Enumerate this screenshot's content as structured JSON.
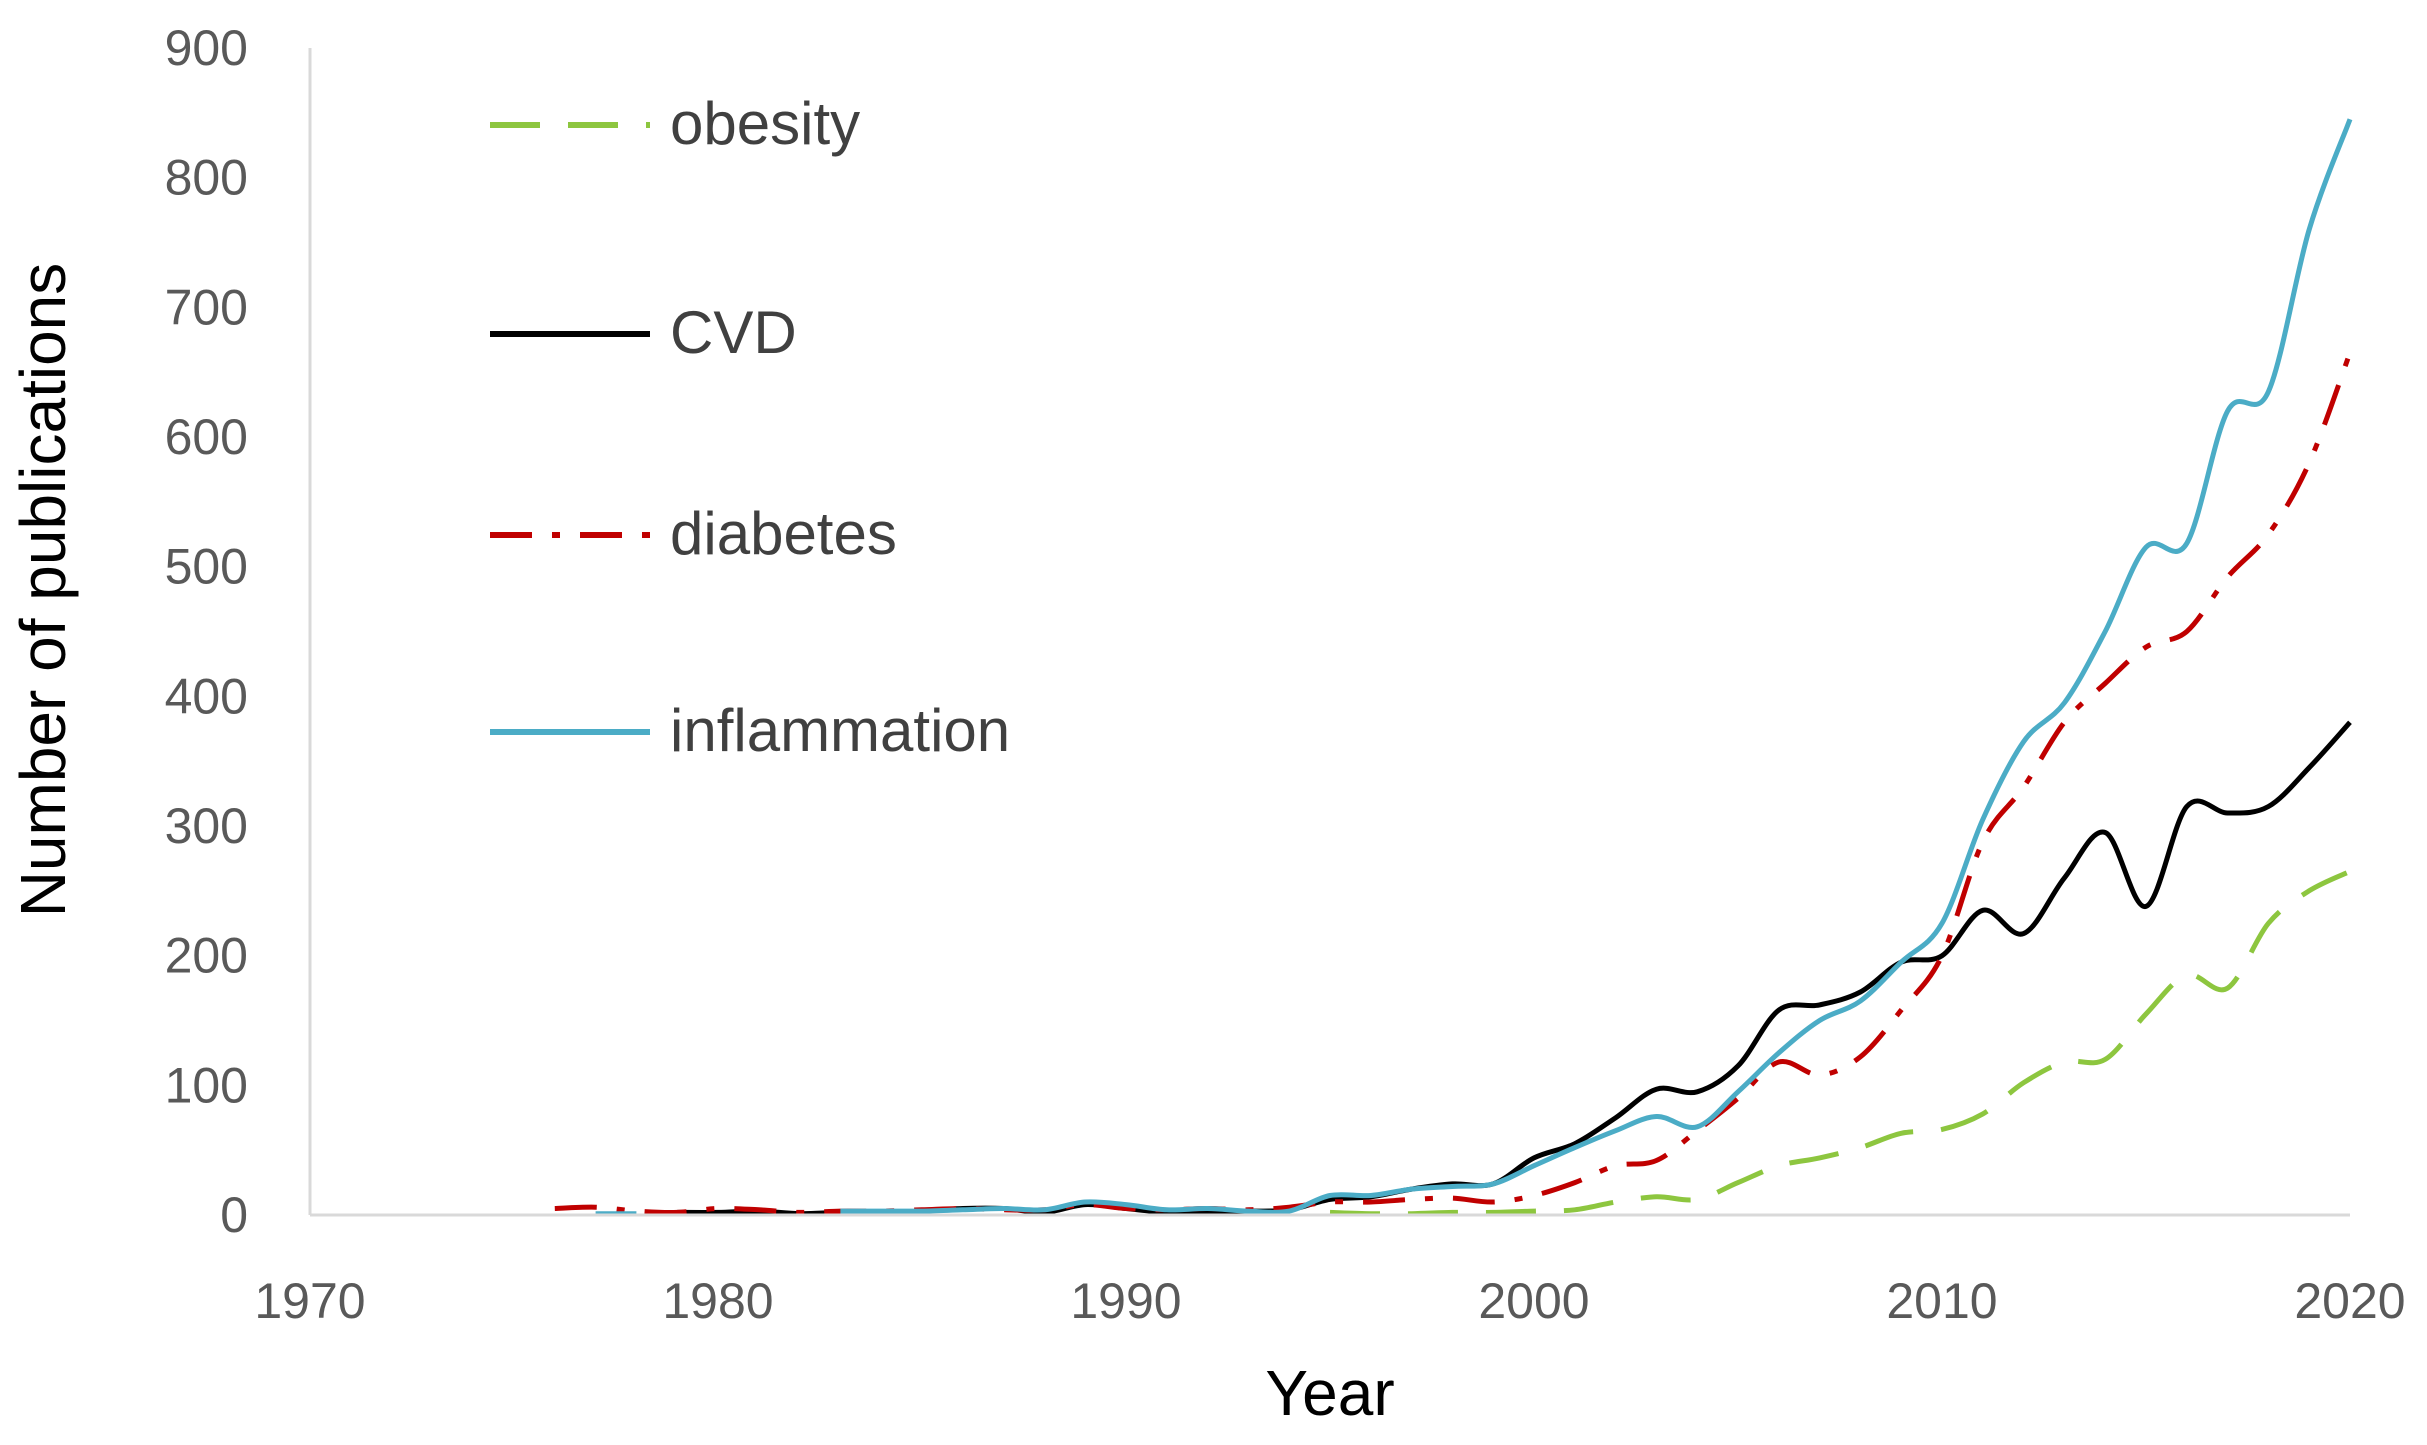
{
  "chart_data": {
    "type": "line",
    "title": "",
    "xlabel": "Year",
    "ylabel": "Number of publications",
    "xlim": [
      1970,
      2020
    ],
    "ylim": [
      0,
      900
    ],
    "x_ticks": [
      1970,
      1980,
      1990,
      2000,
      2010,
      2020
    ],
    "y_ticks": [
      0,
      100,
      200,
      300,
      400,
      500,
      600,
      700,
      800,
      900
    ],
    "grid": false,
    "legend_position": "top-left",
    "series": [
      {
        "name": "obesity",
        "color": "#8DC63F",
        "style": "dashed",
        "x": [
          1995,
          1996,
          1997,
          1998,
          1999,
          2000,
          2001,
          2002,
          2003,
          2004,
          2005,
          2006,
          2007,
          2008,
          2009,
          2010,
          2011,
          2012,
          2013,
          2014,
          2015,
          2016,
          2017,
          2018,
          2019,
          2020
        ],
        "y": [
          2,
          1,
          1,
          2,
          2,
          3,
          4,
          10,
          14,
          12,
          25,
          38,
          44,
          52,
          63,
          66,
          78,
          102,
          118,
          120,
          155,
          185,
          175,
          225,
          250,
          265
        ]
      },
      {
        "name": "CVD",
        "color": "#000000",
        "style": "solid",
        "x": [
          1979,
          1980,
          1981,
          1982,
          1983,
          1984,
          1985,
          1986,
          1987,
          1988,
          1989,
          1990,
          1991,
          1992,
          1993,
          1994,
          1995,
          1996,
          1997,
          1998,
          1999,
          2000,
          2001,
          2002,
          2003,
          2004,
          2005,
          2006,
          2007,
          2008,
          2009,
          2010,
          2011,
          2012,
          2013,
          2014,
          2015,
          2016,
          2017,
          2018,
          2019,
          2020
        ],
        "y": [
          2,
          2,
          3,
          1,
          2,
          2,
          3,
          5,
          5,
          2,
          8,
          5,
          2,
          3,
          3,
          4,
          12,
          14,
          20,
          24,
          24,
          44,
          55,
          75,
          97,
          95,
          115,
          158,
          162,
          172,
          195,
          200,
          235,
          217,
          260,
          295,
          238,
          315,
          310,
          315,
          345,
          380
        ]
      },
      {
        "name": "diabetes",
        "color": "#C00000",
        "style": "dash-dot",
        "x": [
          1976,
          1977,
          1978,
          1979,
          1980,
          1981,
          1982,
          1983,
          1984,
          1985,
          1986,
          1987,
          1988,
          1989,
          1990,
          1991,
          1992,
          1993,
          1994,
          1995,
          1996,
          1997,
          1998,
          1999,
          2000,
          2001,
          2002,
          2003,
          2004,
          2005,
          2006,
          2007,
          2008,
          2009,
          2010,
          2011,
          2012,
          2013,
          2014,
          2015,
          2016,
          2017,
          2018,
          2019,
          2020
        ],
        "y": [
          5,
          6,
          3,
          2,
          5,
          4,
          2,
          3,
          3,
          4,
          5,
          4,
          4,
          8,
          5,
          4,
          5,
          4,
          6,
          10,
          10,
          12,
          13,
          10,
          15,
          25,
          38,
          42,
          65,
          90,
          118,
          108,
          122,
          158,
          200,
          288,
          330,
          380,
          410,
          438,
          450,
          492,
          525,
          580,
          665
        ]
      },
      {
        "name": "inflammation",
        "color": "#4BACC6",
        "style": "solid",
        "x": [
          1977,
          1978,
          1983,
          1984,
          1985,
          1986,
          1987,
          1988,
          1989,
          1990,
          1991,
          1992,
          1993,
          1994,
          1995,
          1996,
          1997,
          1998,
          1999,
          2000,
          2001,
          2002,
          2003,
          2004,
          2005,
          2006,
          2007,
          2008,
          2009,
          2010,
          2011,
          2012,
          2013,
          2014,
          2015,
          2016,
          2017,
          2018,
          2019,
          2020
        ],
        "y": [
          1,
          1,
          3,
          3,
          3,
          4,
          5,
          4,
          10,
          8,
          4,
          5,
          3,
          3,
          15,
          15,
          20,
          22,
          24,
          38,
          52,
          65,
          76,
          68,
          95,
          125,
          150,
          165,
          195,
          225,
          305,
          365,
          395,
          450,
          515,
          518,
          620,
          635,
          760,
          845
        ]
      }
    ]
  }
}
